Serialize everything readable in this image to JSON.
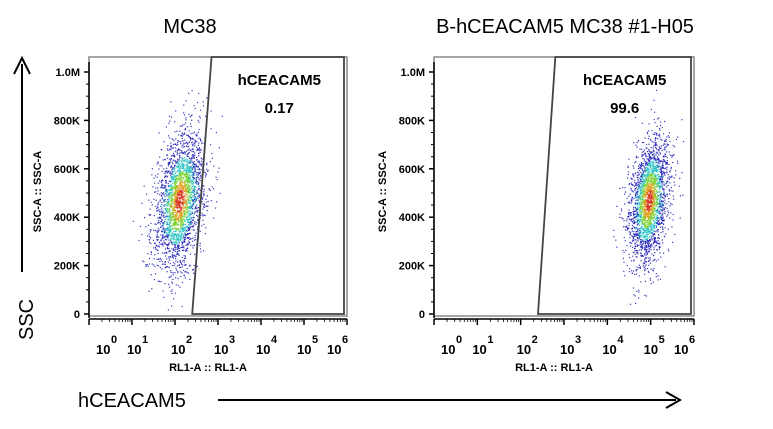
{
  "chart_data": [
    {
      "type": "scatter",
      "title": "MC38",
      "xlabel": "RL1-A :: RL1-A",
      "ylabel": "SSC-A :: SSC-A",
      "x_scale": "log",
      "xlim_log10": [
        0,
        6
      ],
      "ylim": [
        0,
        1050000
      ],
      "x_tick_base": "10",
      "x_tick_exponents": [
        "0",
        "1",
        "2",
        "3",
        "4",
        "5",
        "6"
      ],
      "y_ticks": [
        "0",
        "200K",
        "400K",
        "600K",
        "800K",
        "1.0M"
      ],
      "y_tick_values": [
        0,
        200000,
        400000,
        600000,
        800000,
        1000000
      ],
      "gate": {
        "name": "hCEACAM5",
        "value": "0.17",
        "x_log10_bottom": 2.4,
        "x_log10_top": 2.85
      },
      "population": {
        "center_log10_x": 2.1,
        "sd_log10_x": 0.35,
        "center_y": 470000,
        "sd_y": 130000,
        "count": 2600
      }
    },
    {
      "type": "scatter",
      "title": "B-hCEACAM5 MC38 #1-H05",
      "xlabel": "RL1-A :: RL1-A",
      "ylabel": "SSC-A :: SSC-A",
      "x_scale": "log",
      "xlim_log10": [
        0,
        6
      ],
      "ylim": [
        0,
        1050000
      ],
      "x_tick_base": "10",
      "x_tick_exponents": [
        "0",
        "1",
        "2",
        "3",
        "4",
        "5",
        "6"
      ],
      "y_ticks": [
        "0",
        "200K",
        "400K",
        "600K",
        "800K",
        "1.0M"
      ],
      "y_tick_values": [
        0,
        200000,
        400000,
        600000,
        800000,
        1000000
      ],
      "gate": {
        "name": "hCEACAM5",
        "value": "99.6",
        "x_log10_bottom": 2.4,
        "x_log10_top": 2.8
      },
      "population": {
        "center_log10_x": 4.95,
        "sd_log10_x": 0.28,
        "center_y": 470000,
        "sd_y": 120000,
        "count": 2400
      }
    }
  ],
  "axes": {
    "y_label": "SSC",
    "x_label": "hCEACAM5"
  },
  "colors": {
    "low": "#1a1ab4",
    "mid": "#25c2c2",
    "high": "#7cd12a",
    "peak": "#e0a020",
    "max": "#d83020"
  }
}
